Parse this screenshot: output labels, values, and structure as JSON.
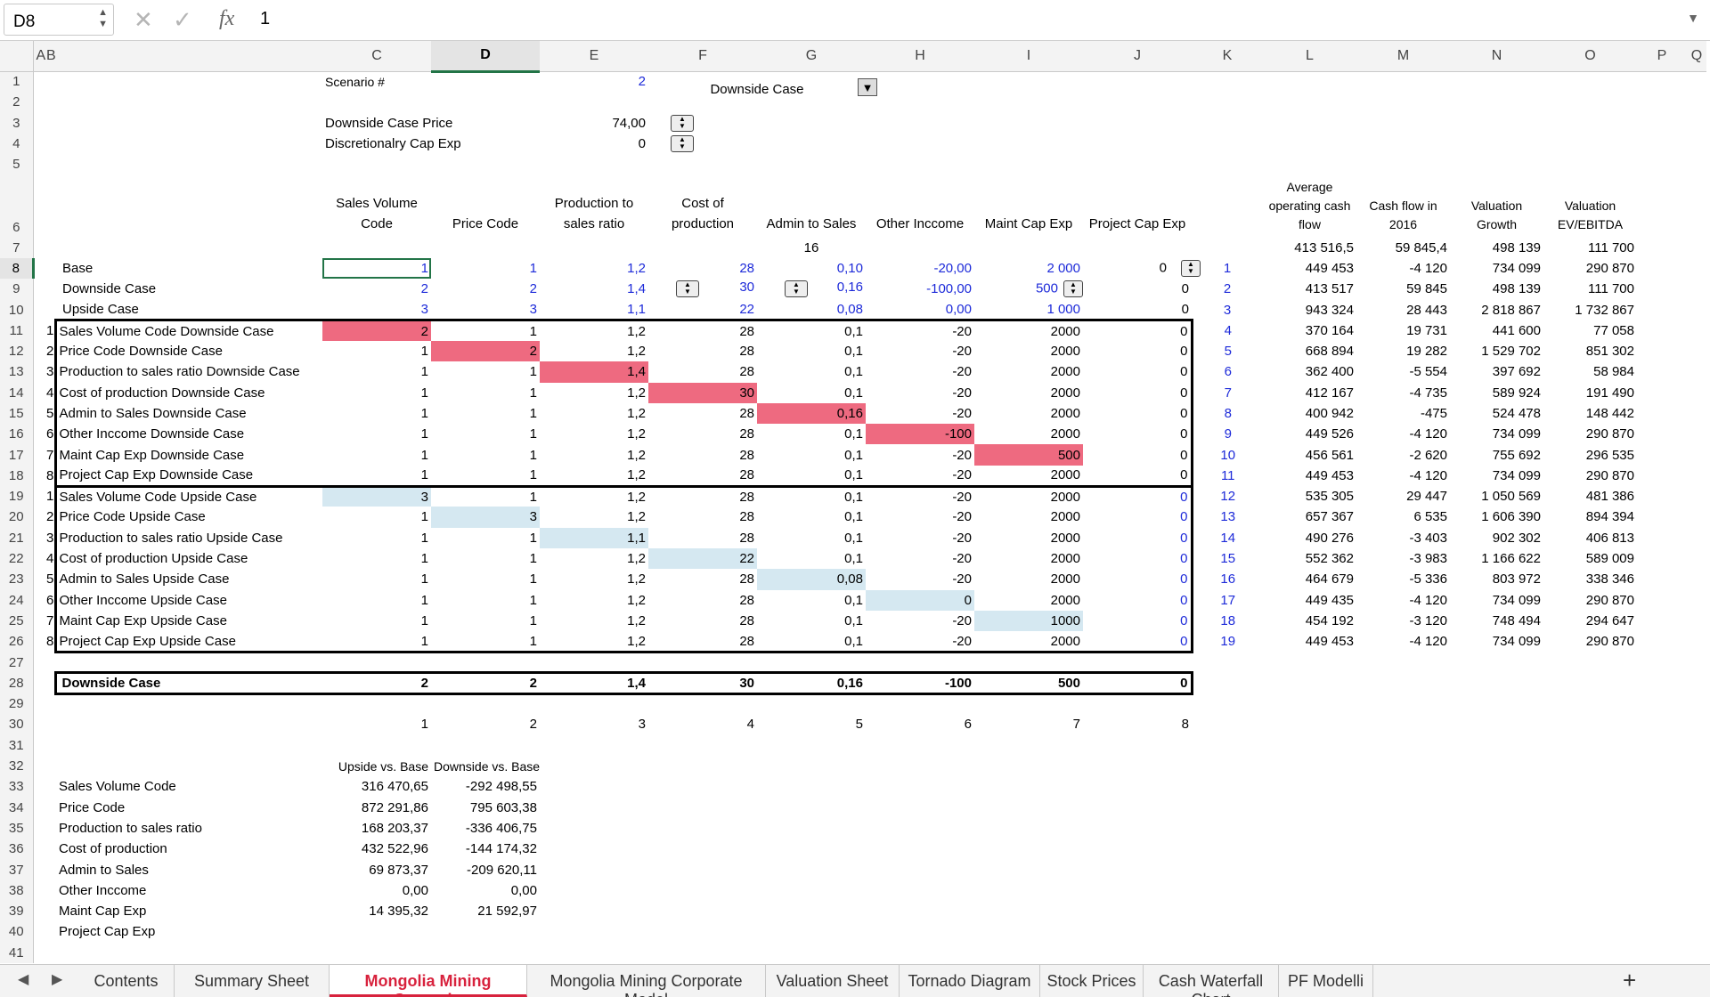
{
  "formula_bar": {
    "cell_ref": "D8",
    "content": "1",
    "fx": "fx"
  },
  "columns": [
    "A",
    "B",
    "C",
    "D",
    "E",
    "F",
    "G",
    "H",
    "I",
    "J",
    "K",
    "L",
    "M",
    "N",
    "O",
    "P",
    "Q"
  ],
  "rows": [
    "1",
    "2",
    "3",
    "4",
    "5",
    "6",
    "7",
    "8",
    "9",
    "10",
    "11",
    "12",
    "13",
    "14",
    "15",
    "16",
    "17",
    "18",
    "19",
    "20",
    "21",
    "22",
    "23",
    "24",
    "25",
    "26",
    "27",
    "28",
    "29",
    "30",
    "31",
    "32",
    "33",
    "34",
    "35",
    "36",
    "37",
    "38",
    "39",
    "40",
    "41"
  ],
  "top": {
    "scenario_label": "Scenario #",
    "scenario_value": "2",
    "dropdown_value": "Downside Case",
    "price_label": "Downside Case Price",
    "price_value": "74,00",
    "capex_label": "Discretionalry Cap Exp",
    "capex_value": "0"
  },
  "headers": {
    "sales_volume": "Sales Volume Code",
    "price_code": "Price Code",
    "production": "Production to sales ratio",
    "cost": "Cost of production",
    "admin": "Admin to Sales",
    "other": "Other Inccome",
    "maint": "Maint Cap Exp",
    "project": "Project Cap Exp",
    "avg_ocf": "Average operating cash flow",
    "cf2016": "Cash flow in 2016",
    "val_growth": "Valuation Growth",
    "val_ev": "Valuation EV/EBITDA",
    "admin_extra": "16"
  },
  "row7": {
    "m": "413 516,5",
    "n": "59 845,4",
    "o": "498 139",
    "p": "111 700"
  },
  "cases": [
    {
      "label": "Base",
      "d": "1",
      "e": "1",
      "f": "1,2",
      "g": "28",
      "h": "0,10",
      "i": "-20,00",
      "j": "2 000",
      "k": "0",
      "l": "1",
      "m": "449 453",
      "n": "-4 120",
      "o": "734 099",
      "p": "290 870"
    },
    {
      "label": "Downside Case",
      "d": "2",
      "e": "2",
      "f": "1,4",
      "g": "30",
      "h": "0,16",
      "i": "-100,00",
      "j": "500",
      "k": "0",
      "l": "2",
      "m": "413 517",
      "n": "59 845",
      "o": "498 139",
      "p": "111 700"
    },
    {
      "label": "Upside Case",
      "d": "3",
      "e": "3",
      "f": "1,1",
      "g": "22",
      "h": "0,08",
      "i": "0,00",
      "j": "1 000",
      "k": "0",
      "l": "3",
      "m": "943 324",
      "n": "28 443",
      "o": "2 818 867",
      "p": "1 732 867"
    }
  ],
  "sensitivity_rows": [
    {
      "b": "1",
      "label": "Sales Volume Code Downside Case",
      "d": "2",
      "e": "1",
      "f": "1,2",
      "g": "28",
      "h": "0,1",
      "i": "-20",
      "j": "2000",
      "k": "0",
      "l": "4",
      "m": "370 164",
      "n": "19 731",
      "o": "441 600",
      "p": "77 058"
    },
    {
      "b": "2",
      "label": "Price Code Downside Case",
      "d": "1",
      "e": "2",
      "f": "1,2",
      "g": "28",
      "h": "0,1",
      "i": "-20",
      "j": "2000",
      "k": "0",
      "l": "5",
      "m": "668 894",
      "n": "19 282",
      "o": "1 529 702",
      "p": "851 302"
    },
    {
      "b": "3",
      "label": "Production to sales ratio Downside Case",
      "d": "1",
      "e": "1",
      "f": "1,4",
      "g": "28",
      "h": "0,1",
      "i": "-20",
      "j": "2000",
      "k": "0",
      "l": "6",
      "m": "362 400",
      "n": "-5 554",
      "o": "397 692",
      "p": "58 984"
    },
    {
      "b": "4",
      "label": "Cost of production  Downside Case",
      "d": "1",
      "e": "1",
      "f": "1,2",
      "g": "30",
      "h": "0,1",
      "i": "-20",
      "j": "2000",
      "k": "0",
      "l": "7",
      "m": "412 167",
      "n": "-4 735",
      "o": "589 924",
      "p": "191 490"
    },
    {
      "b": "5",
      "label": "Admin to Sales Downside Case",
      "d": "1",
      "e": "1",
      "f": "1,2",
      "g": "28",
      "h": "0,16",
      "i": "-20",
      "j": "2000",
      "k": "0",
      "l": "8",
      "m": "400 942",
      "n": "-475",
      "o": "524 478",
      "p": "148 442"
    },
    {
      "b": "6",
      "label": "Other Inccome Downside Case",
      "d": "1",
      "e": "1",
      "f": "1,2",
      "g": "28",
      "h": "0,1",
      "i": "-100",
      "j": "2000",
      "k": "0",
      "l": "9",
      "m": "449 526",
      "n": "-4 120",
      "o": "734 099",
      "p": "290 870"
    },
    {
      "b": "7",
      "label": "Maint Cap Exp Downside Case",
      "d": "1",
      "e": "1",
      "f": "1,2",
      "g": "28",
      "h": "0,1",
      "i": "-20",
      "j": "500",
      "k": "0",
      "l": "10",
      "m": "456 561",
      "n": "-2 620",
      "o": "755 692",
      "p": "296 535"
    },
    {
      "b": "8",
      "label": "Project Cap Exp Downside Case",
      "d": "1",
      "e": "1",
      "f": "1,2",
      "g": "28",
      "h": "0,1",
      "i": "-20",
      "j": "2000",
      "k": "0",
      "l": "11",
      "m": "449 453",
      "n": "-4 120",
      "o": "734 099",
      "p": "290 870"
    },
    {
      "b": "1",
      "label": "Sales Volume Code Upside Case",
      "d": "3",
      "e": "1",
      "f": "1,2",
      "g": "28",
      "h": "0,1",
      "i": "-20",
      "j": "2000",
      "k": "0",
      "l": "12",
      "m": "535 305",
      "n": "29 447",
      "o": "1 050 569",
      "p": "481 386"
    },
    {
      "b": "2",
      "label": "Price Code Upside Case",
      "d": "1",
      "e": "3",
      "f": "1,2",
      "g": "28",
      "h": "0,1",
      "i": "-20",
      "j": "2000",
      "k": "0",
      "l": "13",
      "m": "657 367",
      "n": "6 535",
      "o": "1 606 390",
      "p": "894 394"
    },
    {
      "b": "3",
      "label": "Production to sales ratio Upside Case",
      "d": "1",
      "e": "1",
      "f": "1,1",
      "g": "28",
      "h": "0,1",
      "i": "-20",
      "j": "2000",
      "k": "0",
      "l": "14",
      "m": "490 276",
      "n": "-3 403",
      "o": "902 302",
      "p": "406 813"
    },
    {
      "b": "4",
      "label": "Cost of production  Upside Case",
      "d": "1",
      "e": "1",
      "f": "1,2",
      "g": "22",
      "h": "0,1",
      "i": "-20",
      "j": "2000",
      "k": "0",
      "l": "15",
      "m": "552 362",
      "n": "-3 983",
      "o": "1 166 622",
      "p": "589 009"
    },
    {
      "b": "5",
      "label": "Admin to Sales Upside Case",
      "d": "1",
      "e": "1",
      "f": "1,2",
      "g": "28",
      "h": "0,08",
      "i": "-20",
      "j": "2000",
      "k": "0",
      "l": "16",
      "m": "464 679",
      "n": "-5 336",
      "o": "803 972",
      "p": "338 346"
    },
    {
      "b": "6",
      "label": "Other Inccome Upside Case",
      "d": "1",
      "e": "1",
      "f": "1,2",
      "g": "28",
      "h": "0,1",
      "i": "0",
      "j": "2000",
      "k": "0",
      "l": "17",
      "m": "449 435",
      "n": "-4 120",
      "o": "734 099",
      "p": "290 870"
    },
    {
      "b": "7",
      "label": "Maint Cap Exp Upside Case",
      "d": "1",
      "e": "1",
      "f": "1,2",
      "g": "28",
      "h": "0,1",
      "i": "-20",
      "j": "1000",
      "k": "0",
      "l": "18",
      "m": "454 192",
      "n": "-3 120",
      "o": "748 494",
      "p": "294 647"
    },
    {
      "b": "8",
      "label": "Project Cap Exp Upside Case",
      "d": "1",
      "e": "1",
      "f": "1,2",
      "g": "28",
      "h": "0,1",
      "i": "-20",
      "j": "2000",
      "k": "0",
      "l": "19",
      "m": "449 453",
      "n": "-4 120",
      "o": "734 099",
      "p": "290 870"
    }
  ],
  "selected_case": {
    "label": "Downside Case",
    "d": "2",
    "e": "2",
    "f": "1,4",
    "g": "30",
    "h": "0,16",
    "i": "-100",
    "j": "500",
    "k": "0"
  },
  "row30": [
    "1",
    "2",
    "3",
    "4",
    "5",
    "6",
    "7",
    "8"
  ],
  "summary": {
    "header_up": "Upside vs. Base",
    "header_down": "Downside vs. Base",
    "rows": [
      {
        "label": "Sales Volume Code",
        "up": "316 470,65",
        "down": "-292 498,55"
      },
      {
        "label": "Price Code",
        "up": "872 291,86",
        "down": "795 603,38"
      },
      {
        "label": "Production to sales ratio",
        "up": "168 203,37",
        "down": "-336 406,75"
      },
      {
        "label": "Cost of production",
        "up": "432 522,96",
        "down": "-144 174,32"
      },
      {
        "label": "Admin to Sales",
        "up": "69 873,37",
        "down": "-209 620,11"
      },
      {
        "label": "Other Inccome",
        "up": "0,00",
        "down": "0,00"
      },
      {
        "label": "Maint Cap Exp",
        "up": "14 395,32",
        "down": "21 592,97"
      },
      {
        "label": "Project Cap Exp",
        "up": "",
        "down": ""
      }
    ]
  },
  "tabs": [
    "Contents",
    "Summary Sheet",
    "Mongolia Mining Scenario",
    "Mongolia Mining Corporate Model",
    "Valuation Sheet",
    "Tornado Diagram",
    "Stock Prices",
    "Cash Waterfall Chart",
    "PF Modelli"
  ],
  "active_tab": "Mongolia Mining Scenario",
  "colors": {
    "highlight_downside": "#ee6a80",
    "highlight_upside": "#d5e8f1",
    "accent": "#227447",
    "input_blue": "#1d2ad9",
    "active_tab": "#d8223d"
  }
}
